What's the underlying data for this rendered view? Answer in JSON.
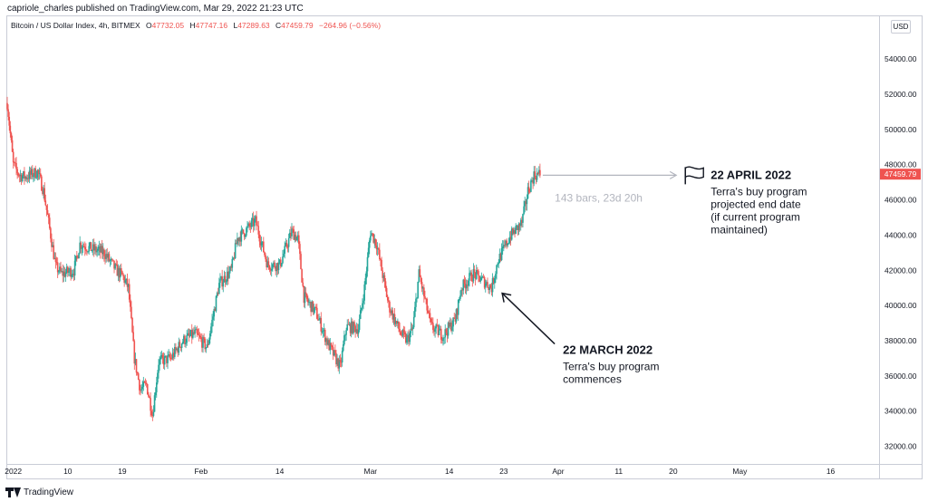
{
  "header": {
    "published": "capriole_charles published on TradingView.com, Mar 29, 2022 21:23 UTC"
  },
  "legend": {
    "symbol": "Bitcoin / US Dollar Index, 4h, BITMEX",
    "open_label": "O",
    "open": "47732.05",
    "high_label": "H",
    "high": "47747.16",
    "low_label": "L",
    "low": "47289.63",
    "close_label": "C",
    "close": "47459.79",
    "change": "−264.96 (−0.56%)"
  },
  "currency": "USD",
  "footer": {
    "brand": "TradingView"
  },
  "colors": {
    "up": "#26a69a",
    "down": "#ef5350",
    "arrow_gray": "#b2b5be",
    "annotation": "#131722",
    "price_tag": "#ef5350"
  },
  "chart_data": {
    "type": "candlestick",
    "timeframe": "4h",
    "y_range": [
      31000,
      55500
    ],
    "y_ticks": [
      32000,
      34000,
      36000,
      38000,
      40000,
      42000,
      44000,
      46000,
      48000,
      50000,
      52000,
      54000
    ],
    "y_tick_labels": [
      "32000.00",
      "34000.00",
      "36000.00",
      "38000.00",
      "40000.00",
      "42000.00",
      "44000.00",
      "46000.00",
      "48000.00",
      "50000.00",
      "52000.00",
      "54000.00"
    ],
    "x_range": [
      "2021-12-31",
      "2022-05-24"
    ],
    "x_ticks": [
      {
        "date": "2022-01-01",
        "label": "2022"
      },
      {
        "date": "2022-01-10",
        "label": "10"
      },
      {
        "date": "2022-01-19",
        "label": "19"
      },
      {
        "date": "2022-02-01",
        "label": "Feb"
      },
      {
        "date": "2022-02-14",
        "label": "14"
      },
      {
        "date": "2022-03-01",
        "label": "Mar"
      },
      {
        "date": "2022-03-14",
        "label": "14"
      },
      {
        "date": "2022-03-23",
        "label": "23"
      },
      {
        "date": "2022-04-01",
        "label": "Apr"
      },
      {
        "date": "2022-04-11",
        "label": "11"
      },
      {
        "date": "2022-04-20",
        "label": "20"
      },
      {
        "date": "2022-05-01",
        "label": "May"
      },
      {
        "date": "2022-05-16",
        "label": "16"
      }
    ],
    "last_price": 47459.79,
    "last_price_label": "47459.79",
    "price_path": [
      [
        "2021-12-31",
        51500
      ],
      [
        "2022-01-01",
        48000
      ],
      [
        "2022-01-02",
        47400
      ],
      [
        "2022-01-03",
        47300
      ],
      [
        "2022-01-05",
        47600
      ],
      [
        "2022-01-06",
        46500
      ],
      [
        "2022-01-08",
        42200
      ],
      [
        "2022-01-09",
        41800
      ],
      [
        "2022-01-11",
        42000
      ],
      [
        "2022-01-12",
        43500
      ],
      [
        "2022-01-14",
        43200
      ],
      [
        "2022-01-16",
        43000
      ],
      [
        "2022-01-17",
        42500
      ],
      [
        "2022-01-18",
        42000
      ],
      [
        "2022-01-19",
        41700
      ],
      [
        "2022-01-20",
        41000
      ],
      [
        "2022-01-21",
        37000
      ],
      [
        "2022-01-22",
        35200
      ],
      [
        "2022-01-23",
        35500
      ],
      [
        "2022-01-24",
        33800
      ],
      [
        "2022-01-25",
        36800
      ],
      [
        "2022-01-27",
        37000
      ],
      [
        "2022-01-29",
        38000
      ],
      [
        "2022-01-31",
        38400
      ],
      [
        "2022-02-02",
        37600
      ],
      [
        "2022-02-04",
        41200
      ],
      [
        "2022-02-06",
        42000
      ],
      [
        "2022-02-07",
        43800
      ],
      [
        "2022-02-10",
        44800
      ],
      [
        "2022-02-12",
        42300
      ],
      [
        "2022-02-14",
        42300
      ],
      [
        "2022-02-16",
        44200
      ],
      [
        "2022-02-17",
        43800
      ],
      [
        "2022-02-18",
        40500
      ],
      [
        "2022-02-20",
        39600
      ],
      [
        "2022-02-22",
        37800
      ],
      [
        "2022-02-24",
        36500
      ],
      [
        "2022-02-25",
        38800
      ],
      [
        "2022-02-27",
        38700
      ],
      [
        "2022-02-28",
        41000
      ],
      [
        "2022-03-01",
        44200
      ],
      [
        "2022-03-02",
        43500
      ],
      [
        "2022-03-04",
        40000
      ],
      [
        "2022-03-06",
        38400
      ],
      [
        "2022-03-07",
        38000
      ],
      [
        "2022-03-08",
        38700
      ],
      [
        "2022-03-09",
        41800
      ],
      [
        "2022-03-11",
        38800
      ],
      [
        "2022-03-13",
        38300
      ],
      [
        "2022-03-15",
        39200
      ],
      [
        "2022-03-16",
        41000
      ],
      [
        "2022-03-18",
        41800
      ],
      [
        "2022-03-20",
        41300
      ],
      [
        "2022-03-21",
        41000
      ],
      [
        "2022-03-22",
        42500
      ],
      [
        "2022-03-24",
        43900
      ],
      [
        "2022-03-26",
        44700
      ],
      [
        "2022-03-27",
        46500
      ],
      [
        "2022-03-28",
        47400
      ],
      [
        "2022-03-29",
        47460
      ]
    ],
    "annotations": [
      {
        "id": "end",
        "title": "22 APRIL 2022",
        "lines": [
          "Terra's buy program",
          "projected end date",
          "(if current program",
          "maintained)"
        ],
        "date": "2022-04-22",
        "price": 47400,
        "marker": "flag"
      },
      {
        "id": "start",
        "title": "22 MARCH 2022",
        "lines": [
          "Terra's buy program",
          "commences"
        ],
        "date": "2022-03-22",
        "price": 40800,
        "marker": "arrow"
      }
    ],
    "date_range_measure": {
      "from": "2022-03-29",
      "to": "2022-04-22",
      "price": 47400,
      "label": "143 bars, 23d 20h"
    }
  }
}
